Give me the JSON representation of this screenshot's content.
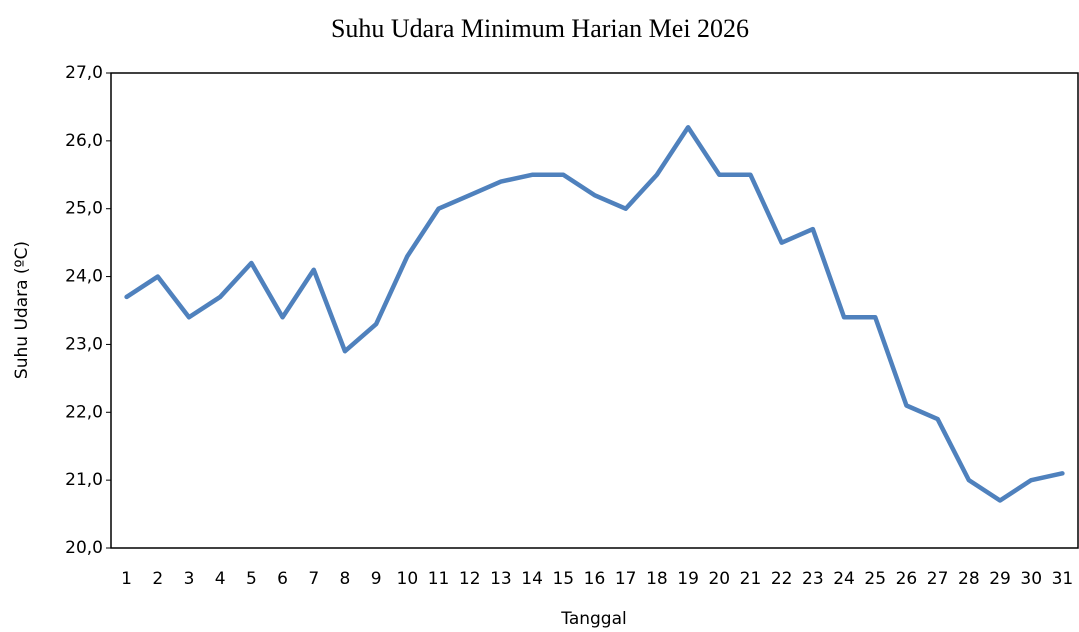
{
  "chart_data": {
    "type": "line",
    "title": "Suhu Udara Minimum Harian Mei 2026",
    "x_label": "Tanggal",
    "y_label": "Suhu Udara (ºC)",
    "categories": [
      "1",
      "2",
      "3",
      "4",
      "5",
      "6",
      "7",
      "8",
      "9",
      "10",
      "11",
      "12",
      "13",
      "14",
      "15",
      "16",
      "17",
      "18",
      "19",
      "20",
      "21",
      "22",
      "23",
      "24",
      "25",
      "26",
      "27",
      "28",
      "29",
      "30",
      "31"
    ],
    "series": [
      {
        "name": "Suhu Udara Minimum",
        "color": "#4f81bd",
        "values": [
          23.7,
          24.0,
          23.4,
          23.7,
          24.2,
          23.4,
          24.1,
          22.9,
          23.3,
          24.3,
          25.0,
          25.2,
          25.4,
          25.5,
          25.5,
          25.2,
          25.0,
          25.5,
          26.2,
          25.5,
          25.5,
          24.5,
          24.7,
          23.4,
          23.4,
          22.1,
          21.9,
          21.0,
          20.7,
          21.0,
          21.1
        ]
      }
    ],
    "ylim": [
      20,
      27
    ],
    "yticks": [
      {
        "value": 20,
        "label": "20,0"
      },
      {
        "value": 21,
        "label": "21,0"
      },
      {
        "value": 22,
        "label": "22,0"
      },
      {
        "value": 23,
        "label": "23,0"
      },
      {
        "value": 24,
        "label": "24,0"
      },
      {
        "value": 25,
        "label": "25,0"
      },
      {
        "value": 26,
        "label": "26,0"
      },
      {
        "value": 27,
        "label": "27,0"
      }
    ],
    "grid": false
  }
}
